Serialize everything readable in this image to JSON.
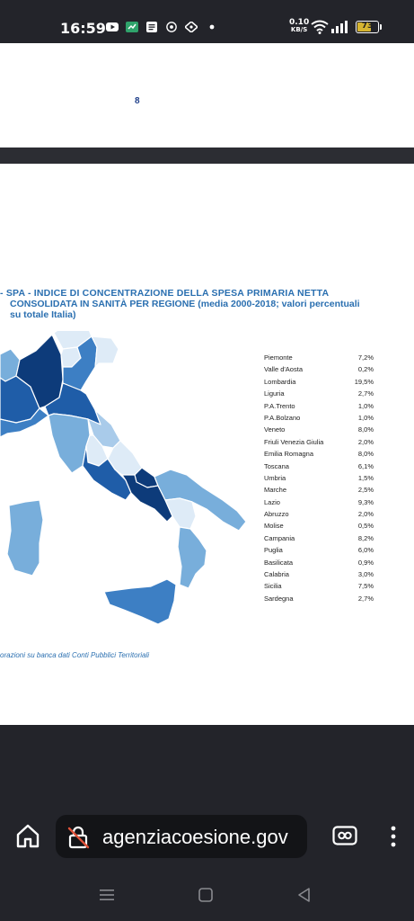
{
  "status_bar": {
    "time": "16:59",
    "speed_value": "0.10",
    "speed_unit": "KB/S",
    "battery": "73",
    "battery_level": 0.73,
    "icons": [
      "youtube-icon",
      "app-icon",
      "document-icon",
      "chrome-icon",
      "shield-icon",
      "dot-icon",
      "wifi-icon",
      "signal-icon",
      "battery-icon"
    ]
  },
  "document": {
    "page_number": "8",
    "figure_title_line1": "- SPA - INDICE DI CONCENTRAZIONE DELLA SPESA PRIMARIA NETTA",
    "figure_title_line2": "CONSOLIDATA IN SANITÀ PER REGIONE (media 2000-2018; valori percentuali",
    "figure_title_line3": "su totale Italia)",
    "source": "orazioni su banca dati Conti Pubblici Territoriali",
    "regions": [
      {
        "name": "Piemonte",
        "value": "7,2%"
      },
      {
        "name": "Valle d'Aosta",
        "value": "0,2%"
      },
      {
        "name": "Lombardia",
        "value": "19,5%"
      },
      {
        "name": "Liguria",
        "value": "2,7%"
      },
      {
        "name": "P.A.Trento",
        "value": "1,0%"
      },
      {
        "name": "P.A.Bolzano",
        "value": "1,0%"
      },
      {
        "name": "Veneto",
        "value": "8,0%"
      },
      {
        "name": "Friuli Venezia Giulia",
        "value": "2,0%"
      },
      {
        "name": "Emilia Romagna",
        "value": "8,0%"
      },
      {
        "name": "Toscana",
        "value": "6,1%"
      },
      {
        "name": "Umbria",
        "value": "1,5%"
      },
      {
        "name": "Marche",
        "value": "2,5%"
      },
      {
        "name": "Lazio",
        "value": "9,3%"
      },
      {
        "name": "Abruzzo",
        "value": "2,0%"
      },
      {
        "name": "Molise",
        "value": "0,5%"
      },
      {
        "name": "Campania",
        "value": "8,2%"
      },
      {
        "name": "Puglia",
        "value": "6,0%"
      },
      {
        "name": "Basilicata",
        "value": "0,9%"
      },
      {
        "name": "Calabria",
        "value": "3,0%"
      },
      {
        "name": "Sicilia",
        "value": "7,5%"
      },
      {
        "name": "Sardegna",
        "value": "2,7%"
      }
    ],
    "map_colors": {
      "darkest": "#0d3b7a",
      "dark": "#1f5da8",
      "medium": "#3d7fc4",
      "light": "#78aedb",
      "lighter": "#a9cbea",
      "lightest": "#deebf7"
    }
  },
  "browser": {
    "url": "agenziacoesione.gov",
    "icons": [
      "home-icon",
      "insecure-lock-icon",
      "tabs-icon",
      "more-vert-icon"
    ]
  },
  "navbar": {
    "icons": [
      "menu-nav-icon",
      "home-nav-icon",
      "back-nav-icon"
    ]
  }
}
